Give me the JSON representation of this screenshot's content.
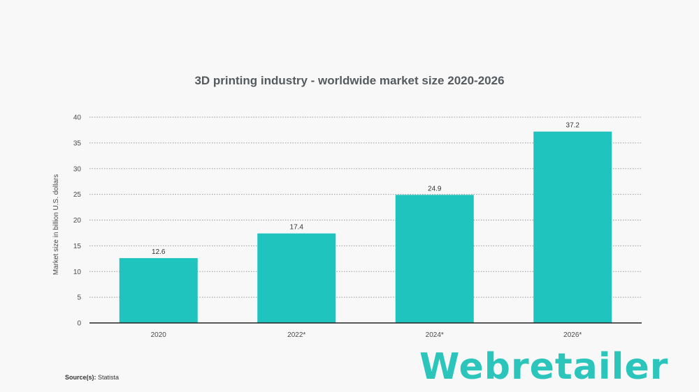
{
  "chart_data": {
    "type": "bar",
    "title": "3D printing industry - worldwide market size 2020-2026",
    "xlabel": "",
    "ylabel": "Market size in billion U.S. dollars",
    "categories": [
      "2020",
      "2022*",
      "2024*",
      "2026*"
    ],
    "values": [
      12.6,
      17.4,
      24.9,
      37.2
    ],
    "value_labels": [
      "12.6",
      "17.4",
      "24.9",
      "37.2"
    ],
    "ylim": [
      0,
      40
    ],
    "yticks": [
      0,
      5,
      10,
      15,
      20,
      25,
      30,
      35,
      40
    ],
    "grid": true,
    "bar_color": "#1fc4be"
  },
  "source": {
    "label": "Source(s):",
    "value": "Statista"
  },
  "brand": {
    "name": "Webretailer",
    "color": "#2cc5bc"
  }
}
